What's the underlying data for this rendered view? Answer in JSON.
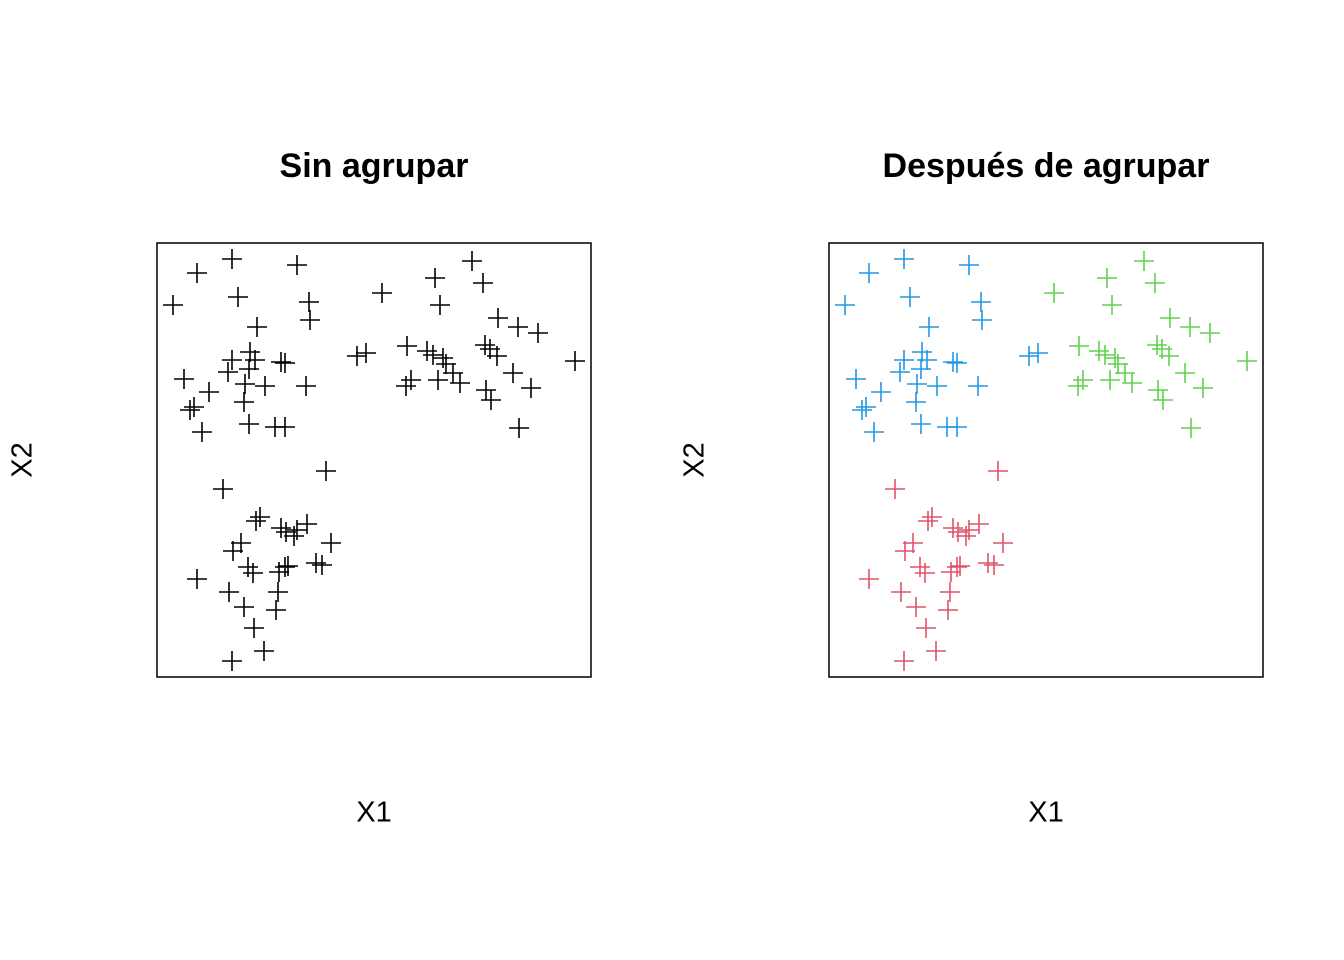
{
  "chart_data": [
    {
      "type": "scatter",
      "title": "Sin agrupar",
      "xlabel": "X1",
      "ylabel": "X2",
      "xlim": [
        0,
        434
      ],
      "ylim": [
        0,
        434
      ],
      "series": [
        {
          "color": "#000000",
          "x": [
            75,
            40,
            140,
            16,
            81,
            152,
            153,
            100,
            200,
            209,
            93,
            75,
            98,
            124,
            128,
            92,
            71,
            27,
            88,
            108,
            149,
            52,
            37,
            33,
            87,
            92,
            118,
            128,
            45,
            315,
            278,
            326,
            225,
            283,
            341,
            361,
            381,
            250,
            270,
            328,
            333,
            276,
            286,
            340,
            418,
            289,
            296,
            356,
            281,
            303,
            254,
            249,
            329,
            374,
            334,
            362,
            169,
            66,
            103,
            99,
            124,
            150,
            140,
            137,
            129,
            84,
            174,
            76,
            91,
            131,
            159,
            165,
            122,
            96,
            40,
            72,
            128,
            121,
            87,
            119,
            97,
            107,
            75
          ],
          "y": [
            418,
            404,
            412,
            372,
            380,
            375,
            357,
            350,
            321,
            324,
            325,
            317,
            317,
            315,
            314,
            308,
            305,
            298,
            293,
            291,
            291,
            285,
            270,
            267,
            275,
            253,
            250,
            250,
            245,
            416,
            399,
            394,
            384,
            372,
            359,
            350,
            344,
            331,
            326,
            332,
            328,
            322,
            319,
            321,
            316,
            313,
            304,
            304,
            297,
            294,
            297,
            291,
            287,
            289,
            277,
            249,
            206,
            188,
            160,
            156,
            149,
            153,
            147,
            141,
            145,
            134,
            134,
            126,
            110,
            111,
            114,
            112,
            105,
            104,
            98,
            85,
            110,
            85,
            70,
            67,
            49,
            26,
            16
          ]
        }
      ]
    },
    {
      "type": "scatter",
      "title": "Después de agrupar",
      "xlabel": "X1",
      "ylabel": "X2",
      "xlim": [
        0,
        434
      ],
      "ylim": [
        0,
        434
      ],
      "series": [
        {
          "color": "#2297E6",
          "x": [
            75,
            40,
            140,
            16,
            81,
            152,
            153,
            100,
            200,
            209,
            93,
            75,
            98,
            124,
            128,
            92,
            71,
            27,
            88,
            108,
            149,
            52,
            37,
            33,
            87,
            92,
            118,
            128,
            45
          ],
          "y": [
            418,
            404,
            412,
            372,
            380,
            375,
            357,
            350,
            321,
            324,
            325,
            317,
            317,
            315,
            314,
            308,
            305,
            298,
            293,
            291,
            291,
            285,
            270,
            267,
            275,
            253,
            250,
            250,
            245
          ]
        },
        {
          "color": "#61D04F",
          "x": [
            315,
            278,
            326,
            225,
            283,
            341,
            361,
            381,
            250,
            270,
            328,
            333,
            276,
            286,
            340,
            418,
            289,
            296,
            356,
            281,
            303,
            254,
            249,
            329,
            374,
            334,
            362
          ],
          "y": [
            416,
            399,
            394,
            384,
            372,
            359,
            350,
            344,
            331,
            326,
            332,
            328,
            322,
            319,
            321,
            316,
            313,
            304,
            304,
            297,
            294,
            297,
            291,
            287,
            289,
            277,
            249
          ]
        },
        {
          "color": "#DF536B",
          "x": [
            169,
            66,
            103,
            99,
            124,
            150,
            140,
            137,
            129,
            84,
            174,
            76,
            91,
            131,
            159,
            165,
            122,
            96,
            40,
            72,
            128,
            121,
            87,
            119,
            97,
            107,
            75
          ],
          "y": [
            206,
            188,
            160,
            156,
            149,
            153,
            147,
            141,
            145,
            134,
            134,
            126,
            110,
            111,
            114,
            112,
            105,
            104,
            98,
            85,
            110,
            85,
            70,
            67,
            49,
            26,
            16
          ]
        }
      ]
    }
  ]
}
